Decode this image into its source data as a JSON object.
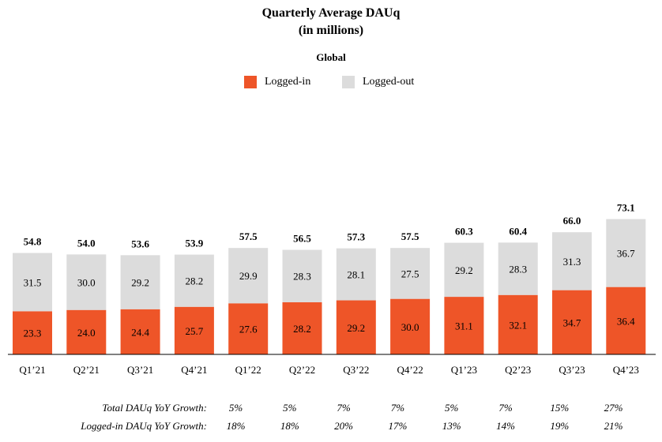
{
  "chart_data": {
    "type": "bar",
    "stacked": true,
    "title": "Quarterly Average DAUq",
    "title_line2": "(in millions)",
    "subtitle": "Global",
    "categories": [
      "Q1’21",
      "Q2’21",
      "Q3’21",
      "Q4’21",
      "Q1’22",
      "Q2’22",
      "Q3’22",
      "Q4’22",
      "Q1’23",
      "Q2’23",
      "Q3’23",
      "Q4’23"
    ],
    "series": [
      {
        "name": "Logged-in",
        "color": "#EE5528",
        "values": [
          23.3,
          24.0,
          24.4,
          25.7,
          27.6,
          28.2,
          29.2,
          30.0,
          31.1,
          32.1,
          34.7,
          36.4
        ]
      },
      {
        "name": "Logged-out",
        "color": "#DCDCDC",
        "values": [
          31.5,
          30.0,
          29.2,
          28.2,
          29.9,
          28.3,
          28.1,
          27.5,
          29.2,
          28.3,
          31.3,
          36.7
        ]
      }
    ],
    "totals": [
      54.8,
      54.0,
      53.6,
      53.9,
      57.5,
      56.5,
      57.3,
      57.5,
      60.3,
      60.4,
      66.0,
      73.1
    ],
    "ylim": [
      0,
      75
    ],
    "xlabel": "",
    "ylabel": ""
  },
  "growth_rows": [
    {
      "label": "Total DAUq YoY Growth:",
      "values": [
        "5%",
        "5%",
        "7%",
        "7%",
        "5%",
        "7%",
        "15%",
        "27%"
      ]
    },
    {
      "label": "Logged-in DAUq YoY Growth:",
      "values": [
        "18%",
        "18%",
        "20%",
        "17%",
        "13%",
        "14%",
        "19%",
        "21%"
      ]
    }
  ]
}
